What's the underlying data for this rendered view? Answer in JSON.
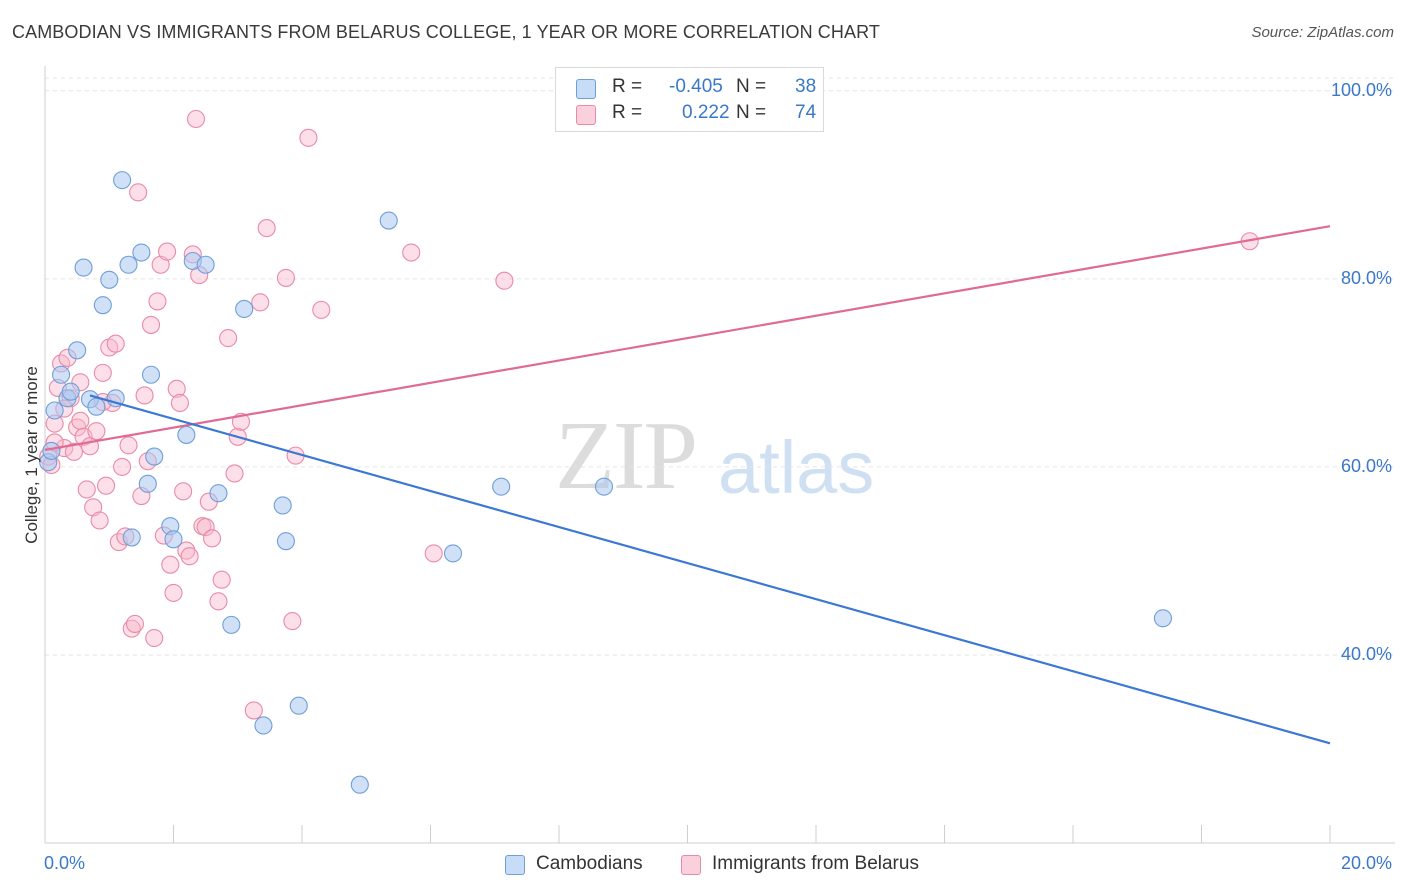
{
  "title": "CAMBODIAN VS IMMIGRANTS FROM BELARUS COLLEGE, 1 YEAR OR MORE CORRELATION CHART",
  "source": "Source: ZipAtlas.com",
  "watermark": {
    "zip": "ZIP",
    "atlas": "atlas"
  },
  "legend": {
    "rows": [
      {
        "r_label": "R =",
        "r_value": "-0.405",
        "n_label": "N =",
        "n_value": "38",
        "color": "#a9c8f0"
      },
      {
        "r_label": "R =",
        "r_value": "0.222",
        "n_label": "N =",
        "n_value": "74",
        "color": "#f8b9cc"
      }
    ]
  },
  "bottom_legend": [
    {
      "label": "Cambodians",
      "color": "#a9c8f0"
    },
    {
      "label": "Immigrants from Belarus",
      "color": "#f8b9cc"
    }
  ],
  "colors": {
    "blue_fill": "#a9c8f0",
    "blue_stroke": "#6f9fd8",
    "blue_line": "#3a78d4",
    "pink_fill": "#f8b9cc",
    "pink_stroke": "#e98aa8",
    "pink_line": "#e06a95",
    "tick_text": "#3a78c9",
    "grid": "#e3e3e3"
  },
  "chart_data": {
    "type": "scatter",
    "title": "CAMBODIAN VS IMMIGRANTS FROM BELARUS COLLEGE, 1 YEAR OR MORE CORRELATION CHART",
    "xlabel": "",
    "ylabel": "College, 1 year or more",
    "xlim": [
      0,
      20
    ],
    "ylim": [
      20,
      102
    ],
    "x_tick_labels": {
      "min": "0.0%",
      "max": "20.0%"
    },
    "y_ticks": [
      {
        "value": 100,
        "label": "100.0%"
      },
      {
        "value": 80,
        "label": "80.0%"
      },
      {
        "value": 60,
        "label": "60.0%"
      },
      {
        "value": 40,
        "label": "40.0%"
      }
    ],
    "series": [
      {
        "name": "Cambodians",
        "r": -0.405,
        "n": 38,
        "trend": {
          "x": [
            0.7,
            20.0
          ],
          "y": [
            67.6,
            30.6
          ]
        },
        "points": [
          {
            "x": 0.05,
            "y": 60.5
          },
          {
            "x": 0.1,
            "y": 61.7
          },
          {
            "x": 0.15,
            "y": 66.0
          },
          {
            "x": 0.25,
            "y": 69.8
          },
          {
            "x": 0.35,
            "y": 67.3
          },
          {
            "x": 0.4,
            "y": 68.0
          },
          {
            "x": 0.5,
            "y": 72.4
          },
          {
            "x": 0.6,
            "y": 81.2
          },
          {
            "x": 0.7,
            "y": 67.2
          },
          {
            "x": 0.8,
            "y": 66.4
          },
          {
            "x": 0.9,
            "y": 77.2
          },
          {
            "x": 1.0,
            "y": 79.9
          },
          {
            "x": 1.1,
            "y": 67.3
          },
          {
            "x": 1.2,
            "y": 90.5
          },
          {
            "x": 1.3,
            "y": 81.5
          },
          {
            "x": 1.35,
            "y": 52.5
          },
          {
            "x": 1.5,
            "y": 82.8
          },
          {
            "x": 1.6,
            "y": 58.2
          },
          {
            "x": 1.65,
            "y": 69.8
          },
          {
            "x": 1.7,
            "y": 61.1
          },
          {
            "x": 1.95,
            "y": 53.7
          },
          {
            "x": 2.0,
            "y": 52.3
          },
          {
            "x": 2.2,
            "y": 63.4
          },
          {
            "x": 2.3,
            "y": 81.9
          },
          {
            "x": 2.5,
            "y": 81.5
          },
          {
            "x": 2.7,
            "y": 57.2
          },
          {
            "x": 2.9,
            "y": 43.2
          },
          {
            "x": 3.1,
            "y": 76.8
          },
          {
            "x": 3.4,
            "y": 32.5
          },
          {
            "x": 3.7,
            "y": 55.9
          },
          {
            "x": 3.75,
            "y": 52.1
          },
          {
            "x": 3.95,
            "y": 34.6
          },
          {
            "x": 4.9,
            "y": 26.2
          },
          {
            "x": 5.35,
            "y": 86.2
          },
          {
            "x": 6.35,
            "y": 50.8
          },
          {
            "x": 7.1,
            "y": 57.9
          },
          {
            "x": 8.7,
            "y": 57.9
          },
          {
            "x": 17.4,
            "y": 43.9
          }
        ]
      },
      {
        "name": "Immigrants from Belarus",
        "r": 0.222,
        "n": 74,
        "trend": {
          "x": [
            0.0,
            20.0
          ],
          "y": [
            61.8,
            85.6
          ]
        },
        "points": [
          {
            "x": 0.05,
            "y": 61.1
          },
          {
            "x": 0.1,
            "y": 60.2
          },
          {
            "x": 0.15,
            "y": 64.6
          },
          {
            "x": 0.2,
            "y": 68.4
          },
          {
            "x": 0.25,
            "y": 71.0
          },
          {
            "x": 0.3,
            "y": 62.0
          },
          {
            "x": 0.35,
            "y": 71.6
          },
          {
            "x": 0.4,
            "y": 67.3
          },
          {
            "x": 0.45,
            "y": 61.6
          },
          {
            "x": 0.5,
            "y": 64.2
          },
          {
            "x": 0.55,
            "y": 64.9
          },
          {
            "x": 0.6,
            "y": 63.2
          },
          {
            "x": 0.65,
            "y": 57.6
          },
          {
            "x": 0.7,
            "y": 62.2
          },
          {
            "x": 0.75,
            "y": 55.7
          },
          {
            "x": 0.8,
            "y": 63.8
          },
          {
            "x": 0.85,
            "y": 54.3
          },
          {
            "x": 0.9,
            "y": 70.0
          },
          {
            "x": 0.95,
            "y": 58.0
          },
          {
            "x": 1.0,
            "y": 72.7
          },
          {
            "x": 1.05,
            "y": 66.8
          },
          {
            "x": 1.1,
            "y": 73.1
          },
          {
            "x": 1.15,
            "y": 52.0
          },
          {
            "x": 1.2,
            "y": 60.0
          },
          {
            "x": 1.25,
            "y": 52.6
          },
          {
            "x": 1.3,
            "y": 62.3
          },
          {
            "x": 1.35,
            "y": 42.8
          },
          {
            "x": 1.4,
            "y": 43.3
          },
          {
            "x": 1.45,
            "y": 89.2
          },
          {
            "x": 1.5,
            "y": 56.9
          },
          {
            "x": 1.55,
            "y": 67.6
          },
          {
            "x": 1.6,
            "y": 60.6
          },
          {
            "x": 1.65,
            "y": 75.1
          },
          {
            "x": 1.7,
            "y": 41.8
          },
          {
            "x": 1.75,
            "y": 77.6
          },
          {
            "x": 1.8,
            "y": 81.5
          },
          {
            "x": 1.85,
            "y": 52.7
          },
          {
            "x": 1.9,
            "y": 82.9
          },
          {
            "x": 1.95,
            "y": 49.6
          },
          {
            "x": 2.0,
            "y": 46.6
          },
          {
            "x": 2.05,
            "y": 68.3
          },
          {
            "x": 2.1,
            "y": 66.8
          },
          {
            "x": 2.15,
            "y": 57.4
          },
          {
            "x": 2.2,
            "y": 51.1
          },
          {
            "x": 2.25,
            "y": 50.5
          },
          {
            "x": 2.3,
            "y": 82.6
          },
          {
            "x": 2.35,
            "y": 97.0
          },
          {
            "x": 2.4,
            "y": 80.4
          },
          {
            "x": 2.45,
            "y": 53.7
          },
          {
            "x": 2.5,
            "y": 53.6
          },
          {
            "x": 2.55,
            "y": 56.3
          },
          {
            "x": 2.6,
            "y": 52.4
          },
          {
            "x": 2.7,
            "y": 45.7
          },
          {
            "x": 2.75,
            "y": 48.0
          },
          {
            "x": 2.85,
            "y": 73.7
          },
          {
            "x": 2.95,
            "y": 59.3
          },
          {
            "x": 3.0,
            "y": 63.2
          },
          {
            "x": 3.05,
            "y": 64.8
          },
          {
            "x": 3.25,
            "y": 34.1
          },
          {
            "x": 3.35,
            "y": 77.5
          },
          {
            "x": 3.45,
            "y": 85.4
          },
          {
            "x": 3.75,
            "y": 80.1
          },
          {
            "x": 3.85,
            "y": 43.6
          },
          {
            "x": 3.9,
            "y": 61.2
          },
          {
            "x": 4.1,
            "y": 95.0
          },
          {
            "x": 4.3,
            "y": 76.7
          },
          {
            "x": 5.7,
            "y": 82.8
          },
          {
            "x": 6.05,
            "y": 50.8
          },
          {
            "x": 7.15,
            "y": 79.8
          },
          {
            "x": 18.75,
            "y": 84.0
          },
          {
            "x": 0.55,
            "y": 69.0
          },
          {
            "x": 0.15,
            "y": 62.6
          },
          {
            "x": 0.3,
            "y": 66.2
          },
          {
            "x": 0.9,
            "y": 66.9
          }
        ]
      }
    ]
  }
}
